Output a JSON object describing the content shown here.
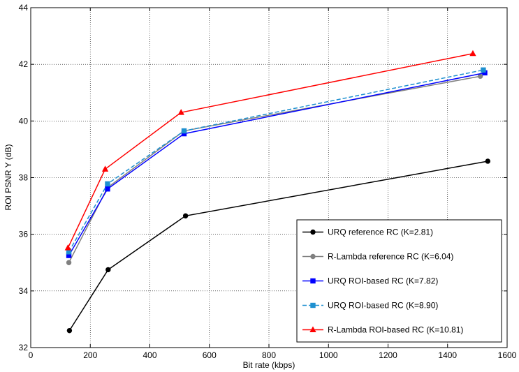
{
  "chart_data": {
    "type": "line",
    "title": "",
    "xlabel": "Bit rate (kbps)",
    "ylabel": "ROI PSNR Y (dB)",
    "xlim": [
      0,
      1600
    ],
    "ylim": [
      32,
      44
    ],
    "xticks": [
      0,
      200,
      400,
      600,
      800,
      1000,
      1200,
      1400,
      1600
    ],
    "yticks": [
      32,
      34,
      36,
      38,
      40,
      42,
      44
    ],
    "grid": true,
    "legend_position": "bottom-right",
    "series": [
      {
        "name": "URQ reference RC (K=2.81)",
        "color": "#000000",
        "marker": "circle",
        "dash": "solid",
        "x": [
          130,
          260,
          520,
          1535
        ],
        "y": [
          32.6,
          34.75,
          36.65,
          38.58
        ]
      },
      {
        "name": "R-Lambda reference RC (K=6.04)",
        "color": "#808080",
        "marker": "circle",
        "dash": "solid",
        "x": [
          128,
          258,
          515,
          1510
        ],
        "y": [
          35.0,
          37.65,
          39.65,
          41.58
        ]
      },
      {
        "name": "URQ ROI-based RC (K=7.82)",
        "color": "#0000ff",
        "marker": "square",
        "dash": "solid",
        "x": [
          128,
          258,
          515,
          1525
        ],
        "y": [
          35.25,
          37.6,
          39.55,
          41.7
        ]
      },
      {
        "name": "URQ ROI-based RC (K=8.90)",
        "color": "#1e90d0",
        "marker": "square",
        "dash": "dashed",
        "x": [
          128,
          258,
          515,
          1520
        ],
        "y": [
          35.38,
          37.78,
          39.65,
          41.8
        ]
      },
      {
        "name": "R-Lambda ROI-based RC (K=10.81)",
        "color": "#ff0000",
        "marker": "triangle",
        "dash": "solid",
        "x": [
          125,
          250,
          505,
          1485
        ],
        "y": [
          35.52,
          38.3,
          40.3,
          42.38
        ]
      }
    ]
  }
}
